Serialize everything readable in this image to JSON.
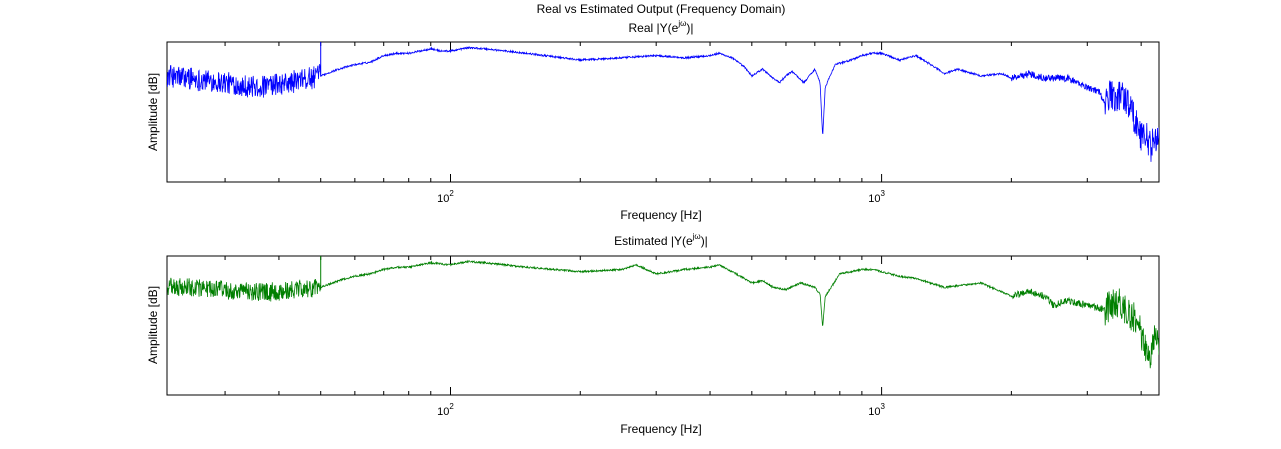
{
  "figure_title": "Real vs Estimated Output (Frequency Domain)",
  "chart_data": [
    {
      "type": "line",
      "title": "Real |Y(e^{jω})|",
      "title_main": "Real |Y(e",
      "title_sup": "jω",
      "title_end": ")|",
      "xlabel": "Frequency [Hz]",
      "ylabel": "Amplitude [dB]",
      "xscale": "log",
      "xlim": [
        22,
        4400
      ],
      "ylim": [
        -60,
        2
      ],
      "yticks_visible": false,
      "grid": false,
      "color": "#0000ff",
      "xtick_labels": [
        {
          "value": 100,
          "base": "10",
          "exp": "2"
        },
        {
          "value": 1000,
          "base": "10",
          "exp": "3"
        }
      ],
      "series": [
        {
          "noise_bands": [
            {
              "x_start": 22,
              "x_end": 50,
              "noise_db": 5
            }
          ],
          "points": [
            [
              22,
              -13
            ],
            [
              25,
              -14
            ],
            [
              30,
              -16
            ],
            [
              35,
              -18
            ],
            [
              40,
              -17
            ],
            [
              45,
              -15
            ],
            [
              50,
              -13
            ],
            [
              55,
              -10
            ],
            [
              60,
              -8
            ],
            [
              65,
              -7
            ],
            [
              70,
              -4
            ],
            [
              75,
              -3
            ],
            [
              80,
              -3
            ],
            [
              85,
              -2
            ],
            [
              90,
              -1
            ],
            [
              95,
              -2
            ],
            [
              100,
              -2
            ],
            [
              110,
              -0.5
            ],
            [
              120,
              -1
            ],
            [
              150,
              -3
            ],
            [
              200,
              -6
            ],
            [
              250,
              -5
            ],
            [
              300,
              -4
            ],
            [
              350,
              -5
            ],
            [
              400,
              -4
            ],
            [
              420,
              -3
            ],
            [
              450,
              -5
            ],
            [
              480,
              -9
            ],
            [
              500,
              -13
            ],
            [
              530,
              -10
            ],
            [
              560,
              -14
            ],
            [
              580,
              -16
            ],
            [
              600,
              -13
            ],
            [
              620,
              -11
            ],
            [
              660,
              -16
            ],
            [
              700,
              -10
            ],
            [
              720,
              -16
            ],
            [
              730,
              -40
            ],
            [
              740,
              -18
            ],
            [
              780,
              -8
            ],
            [
              850,
              -6
            ],
            [
              900,
              -4
            ],
            [
              950,
              -3
            ],
            [
              1000,
              -3
            ],
            [
              1100,
              -6
            ],
            [
              1200,
              -4
            ],
            [
              1300,
              -8
            ],
            [
              1400,
              -12
            ],
            [
              1500,
              -10
            ],
            [
              1700,
              -13
            ],
            [
              1900,
              -12
            ],
            [
              2000,
              -14
            ],
            [
              2200,
              -12
            ],
            [
              2400,
              -14
            ],
            [
              2700,
              -14
            ],
            [
              3000,
              -18
            ],
            [
              3200,
              -20
            ],
            [
              3300,
              -26
            ],
            [
              3400,
              -20
            ],
            [
              3500,
              -24
            ],
            [
              3600,
              -20
            ],
            [
              3800,
              -28
            ],
            [
              4000,
              -40
            ],
            [
              4100,
              -38
            ],
            [
              4200,
              -45
            ],
            [
              4300,
              -40
            ],
            [
              4400,
              -42
            ]
          ]
        }
      ]
    },
    {
      "type": "line",
      "title": "Estimated |Y(e^{jω})|",
      "title_main": "Estimated |Y(e",
      "title_sup": "jω",
      "title_end": ")|",
      "xlabel": "Frequency [Hz]",
      "ylabel": "Amplitude [dB]",
      "xscale": "log",
      "xlim": [
        22,
        4400
      ],
      "ylim": [
        -60,
        2
      ],
      "yticks_visible": false,
      "grid": false,
      "color": "#007f00",
      "xtick_labels": [
        {
          "value": 100,
          "base": "10",
          "exp": "2"
        },
        {
          "value": 1000,
          "base": "10",
          "exp": "3"
        }
      ],
      "series": [
        {
          "noise_bands": [
            {
              "x_start": 22,
              "x_end": 50,
              "noise_db": 4
            }
          ],
          "points": [
            [
              22,
              -12
            ],
            [
              25,
              -12
            ],
            [
              30,
              -13
            ],
            [
              35,
              -14
            ],
            [
              40,
              -14
            ],
            [
              45,
              -13
            ],
            [
              50,
              -12
            ],
            [
              55,
              -9
            ],
            [
              60,
              -7
            ],
            [
              65,
              -6
            ],
            [
              70,
              -4
            ],
            [
              75,
              -3
            ],
            [
              80,
              -3
            ],
            [
              90,
              -1
            ],
            [
              100,
              -2
            ],
            [
              110,
              -0.5
            ],
            [
              120,
              -1
            ],
            [
              150,
              -3
            ],
            [
              200,
              -5
            ],
            [
              250,
              -4
            ],
            [
              270,
              -2
            ],
            [
              300,
              -6
            ],
            [
              350,
              -4
            ],
            [
              400,
              -3
            ],
            [
              420,
              -2
            ],
            [
              450,
              -5
            ],
            [
              480,
              -8
            ],
            [
              500,
              -10
            ],
            [
              530,
              -9
            ],
            [
              560,
              -12
            ],
            [
              600,
              -13
            ],
            [
              650,
              -10
            ],
            [
              700,
              -12
            ],
            [
              720,
              -15
            ],
            [
              730,
              -30
            ],
            [
              740,
              -16
            ],
            [
              800,
              -6
            ],
            [
              850,
              -5
            ],
            [
              900,
              -4
            ],
            [
              950,
              -4
            ],
            [
              1000,
              -5
            ],
            [
              1100,
              -7
            ],
            [
              1200,
              -8
            ],
            [
              1400,
              -12
            ],
            [
              1700,
              -10
            ],
            [
              2000,
              -16
            ],
            [
              2200,
              -14
            ],
            [
              2400,
              -16
            ],
            [
              2500,
              -20
            ],
            [
              2700,
              -18
            ],
            [
              3000,
              -20
            ],
            [
              3300,
              -22
            ],
            [
              3500,
              -18
            ],
            [
              3700,
              -22
            ],
            [
              3900,
              -27
            ],
            [
              4000,
              -32
            ],
            [
              4100,
              -40
            ],
            [
              4200,
              -42
            ],
            [
              4300,
              -35
            ],
            [
              4400,
              -37
            ]
          ]
        }
      ]
    }
  ]
}
